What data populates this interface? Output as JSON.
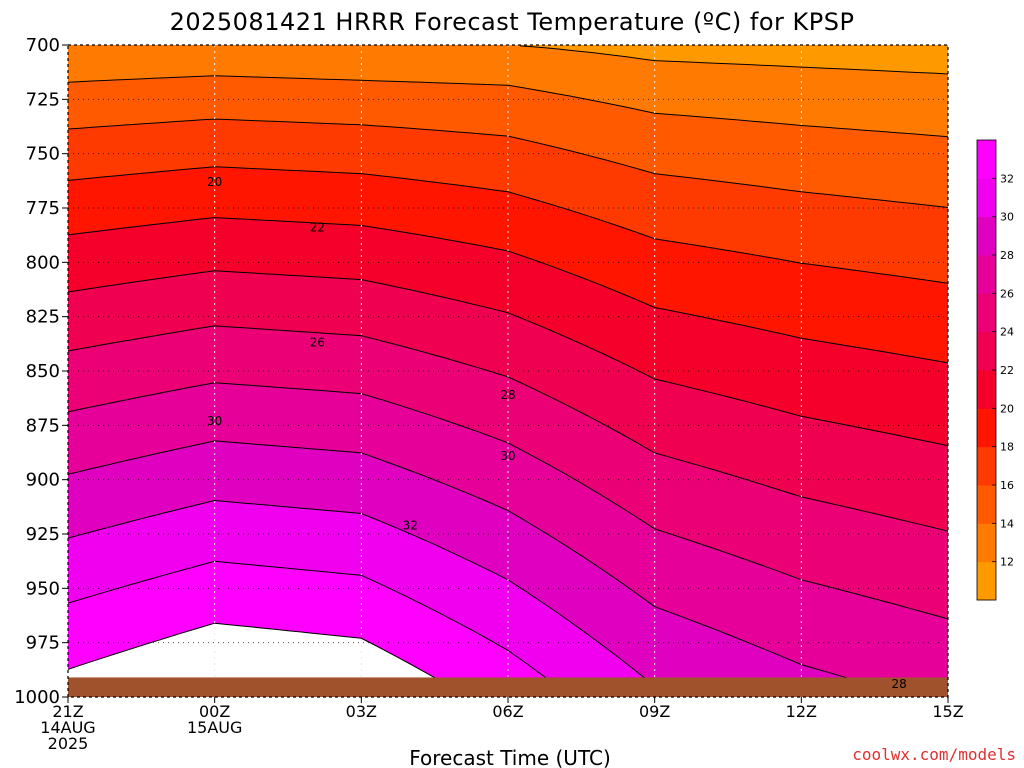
{
  "chart_data": {
    "type": "heatmap",
    "title": "2025081421 HRRR Forecast Temperature (ºC) for KPSP",
    "xlabel": "Forecast Time (UTC)",
    "ylabel": "",
    "x_ticks": [
      {
        "hour": 0,
        "lines": [
          "21Z",
          "14AUG",
          "2025"
        ]
      },
      {
        "hour": 3,
        "lines": [
          "00Z",
          "15AUG"
        ]
      },
      {
        "hour": 6,
        "lines": [
          "03Z"
        ]
      },
      {
        "hour": 9,
        "lines": [
          "06Z"
        ]
      },
      {
        "hour": 12,
        "lines": [
          "09Z"
        ]
      },
      {
        "hour": 15,
        "lines": [
          "12Z"
        ]
      },
      {
        "hour": 18,
        "lines": [
          "15Z"
        ]
      }
    ],
    "xlim": [
      0,
      18
    ],
    "y_ticks": [
      700,
      725,
      750,
      775,
      800,
      825,
      850,
      875,
      900,
      925,
      950,
      975,
      1000
    ],
    "ylim": [
      700,
      1000
    ],
    "y_direction": "pressure increasing downward",
    "gridlines": "dotted",
    "surface_color": "#a0522d",
    "colorbar": {
      "levels": [
        10,
        12,
        14,
        16,
        18,
        20,
        22,
        24,
        26,
        28,
        30,
        32,
        34
      ],
      "tick_labels": [
        "12",
        "14",
        "16",
        "18",
        "20",
        "22",
        "24",
        "26",
        "28",
        "30",
        "32"
      ],
      "colors": [
        "#ff9900",
        "#ff7a00",
        "#ff5a00",
        "#ff3a00",
        "#ff1500",
        "#f5002a",
        "#f00050",
        "#eb0075",
        "#e60099",
        "#e000c0",
        "#f000ee",
        "#ff00ff"
      ],
      "placement": "right"
    },
    "contour_labels": [
      {
        "value": "20",
        "hour": 3.0,
        "p": 763
      },
      {
        "value": "22",
        "hour": 5.1,
        "p": 784
      },
      {
        "value": "26",
        "hour": 5.1,
        "p": 837
      },
      {
        "value": "28",
        "hour": 9.0,
        "p": 861
      },
      {
        "value": "30",
        "hour": 3.0,
        "p": 873
      },
      {
        "value": "30",
        "hour": 9.0,
        "p": 889
      },
      {
        "value": "32",
        "hour": 7.0,
        "p": 921
      },
      {
        "value": "28",
        "hour": 17.0,
        "p": 994
      }
    ],
    "temperature_at_700": [
      {
        "hour": 0,
        "t": 12.0
      },
      {
        "hour": 3,
        "t": 12.2
      },
      {
        "hour": 6,
        "t": 12.0
      },
      {
        "hour": 9,
        "t": 12.0
      },
      {
        "hour": 12,
        "t": 11.2
      },
      {
        "hour": 15,
        "t": 11.0
      },
      {
        "hour": 18,
        "t": 10.8
      }
    ],
    "temperature_at_995": [
      {
        "hour": 0,
        "t": 34.5
      },
      {
        "hour": 3,
        "t": 36.0
      },
      {
        "hour": 6,
        "t": 35.5
      },
      {
        "hour": 9,
        "t": 33.0
      },
      {
        "hour": 12,
        "t": 30.0
      },
      {
        "hour": 15,
        "t": 28.5
      },
      {
        "hour": 18,
        "t": 27.5
      }
    ]
  },
  "credit": "coolwx.com/models"
}
